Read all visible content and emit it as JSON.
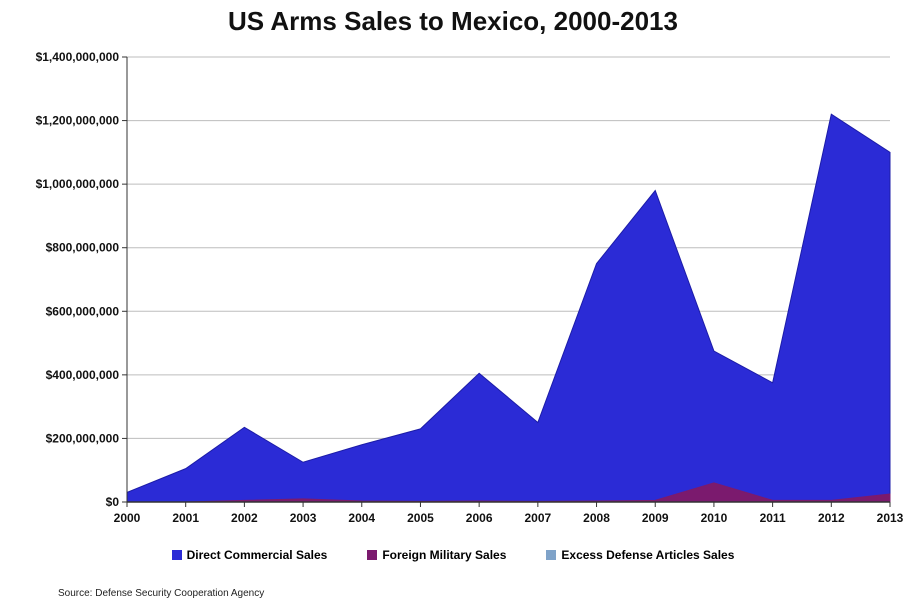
{
  "chart_data": {
    "type": "area",
    "title": "US Arms Sales to Mexico, 2000-2013",
    "x": [
      "2000",
      "2001",
      "2002",
      "2003",
      "2004",
      "2005",
      "2006",
      "2007",
      "2008",
      "2009",
      "2010",
      "2011",
      "2012",
      "2013"
    ],
    "ylim": [
      0,
      1400000000
    ],
    "yticks": [
      0,
      200000000,
      400000000,
      600000000,
      800000000,
      1000000000,
      1200000000,
      1400000000
    ],
    "ytick_labels": [
      "$0",
      "$200,000,000",
      "$400,000,000",
      "$600,000,000",
      "$800,000,000",
      "$1,000,000,000",
      "$1,200,000,000",
      "$1,400,000,000"
    ],
    "grid": true,
    "legend_position": "bottom",
    "series": [
      {
        "name": "Direct Commercial Sales",
        "color": "#2b2bd6",
        "values": [
          30000000,
          105000000,
          235000000,
          125000000,
          180000000,
          230000000,
          405000000,
          250000000,
          750000000,
          980000000,
          475000000,
          375000000,
          1220000000,
          1100000000
        ]
      },
      {
        "name": "Foreign Military Sales",
        "color": "#7b1a6e",
        "values": [
          0,
          0,
          5000000,
          10000000,
          3000000,
          2000000,
          3000000,
          2000000,
          3000000,
          5000000,
          60000000,
          5000000,
          5000000,
          25000000
        ]
      },
      {
        "name": "Excess Defense Articles Sales",
        "color": "#7fa3c9",
        "values": [
          0,
          0,
          0,
          0,
          0,
          0,
          0,
          0,
          0,
          0,
          0,
          0,
          0,
          0
        ]
      }
    ]
  },
  "source": "Source: Defense Security Cooperation Agency"
}
